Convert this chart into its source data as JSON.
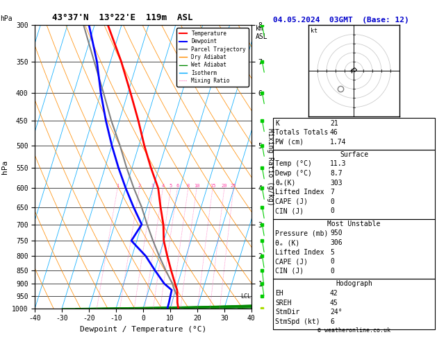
{
  "title_left": "43°37'N  13°22'E  119m  ASL",
  "title_right": "04.05.2024  03GMT  (Base: 12)",
  "xlabel": "Dewpoint / Temperature (°C)",
  "ylabel_left": "hPa",
  "pressure_levels": [
    300,
    350,
    400,
    450,
    500,
    550,
    600,
    650,
    700,
    750,
    800,
    850,
    900,
    950,
    1000
  ],
  "temp_range": [
    -40,
    40
  ],
  "km_ticks": [
    1,
    2,
    3,
    4,
    5,
    6,
    7,
    8
  ],
  "km_pressures": [
    900,
    800,
    700,
    600,
    500,
    400,
    350,
    300
  ],
  "lcl_pressure": 950,
  "temp_profile": {
    "pressure": [
      1000,
      975,
      950,
      925,
      900,
      850,
      800,
      750,
      700,
      650,
      600,
      550,
      500,
      450,
      400,
      350,
      300
    ],
    "temp": [
      13,
      12,
      11.3,
      10.5,
      9,
      6,
      3,
      0,
      -2,
      -5,
      -8,
      -13,
      -18,
      -23,
      -29,
      -36,
      -45
    ]
  },
  "dewpoint_profile": {
    "pressure": [
      1000,
      975,
      950,
      925,
      900,
      850,
      800,
      750,
      700,
      650,
      600,
      550,
      500,
      450,
      400,
      350,
      300
    ],
    "temp": [
      9,
      8.9,
      8.7,
      8.5,
      5,
      0,
      -5,
      -12,
      -10,
      -15,
      -20,
      -25,
      -30,
      -35,
      -40,
      -45,
      -52
    ]
  },
  "parcel_profile": {
    "pressure": [
      950,
      925,
      900,
      850,
      800,
      750,
      700,
      650,
      600,
      550,
      500,
      450,
      400,
      350,
      300
    ],
    "temp": [
      11.3,
      9.5,
      8,
      4,
      0,
      -4,
      -8,
      -12,
      -17,
      -22,
      -27,
      -33,
      -39,
      -46,
      -54
    ]
  },
  "mixing_ratio_values": [
    1,
    2,
    3,
    4,
    5,
    6,
    8,
    10,
    15,
    20,
    25
  ],
  "colors": {
    "temperature": "#ff0000",
    "dewpoint": "#0000ff",
    "parcel": "#808080",
    "dry_adiabat": "#ff8c00",
    "wet_adiabat": "#008800",
    "isotherm": "#00aaff",
    "mixing_ratio": "#ff44aa",
    "background": "#ffffff",
    "grid": "#000000"
  },
  "stats": {
    "K": 21,
    "Totals_Totals": 46,
    "PW_cm": 1.74,
    "Surface_Temp": 11.3,
    "Surface_Dewp": 8.7,
    "Surface_ThetaE": 303,
    "Surface_LiftedIndex": 7,
    "Surface_CAPE": 0,
    "Surface_CIN": 0,
    "MU_Pressure": 950,
    "MU_ThetaE": 306,
    "MU_LiftedIndex": 5,
    "MU_CAPE": 0,
    "MU_CIN": 0,
    "EH": 42,
    "SREH": 45,
    "StmDir": "24°",
    "StmSpd": 6
  },
  "hodograph_u": [
    -3,
    -2,
    -1,
    0,
    1,
    2,
    3,
    2,
    1
  ],
  "hodograph_v": [
    0,
    1,
    2,
    3,
    3,
    2,
    1,
    0,
    -1
  ],
  "wind_barb_pressures": [
    1000,
    950,
    900,
    850,
    800,
    750,
    700,
    650,
    600,
    550,
    500,
    450,
    400,
    350,
    300
  ],
  "wind_barb_u": [
    1,
    1,
    2,
    2,
    3,
    4,
    5,
    5,
    6,
    6,
    7,
    7,
    8,
    8,
    9
  ],
  "wind_barb_v": [
    2,
    3,
    3,
    4,
    4,
    5,
    6,
    6,
    7,
    7,
    8,
    8,
    9,
    9,
    10
  ]
}
